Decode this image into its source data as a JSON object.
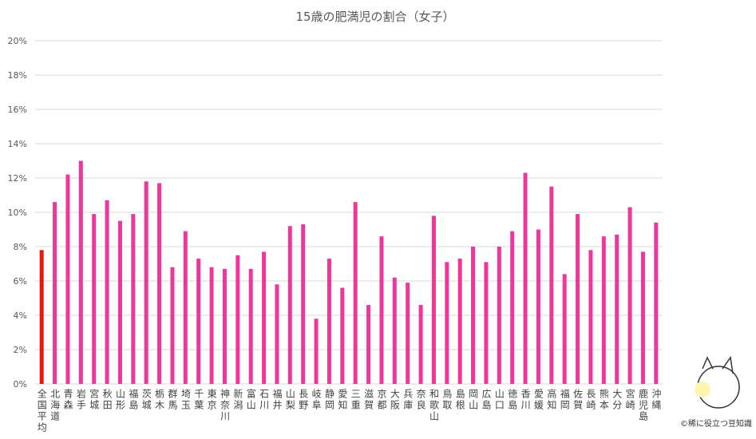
{
  "chart_data": {
    "type": "bar",
    "title": "15歳の肥満児の割合（女子）",
    "categories": [
      "全国平均",
      "北海道",
      "青森",
      "岩手",
      "宮城",
      "秋田",
      "山形",
      "福島",
      "茨城",
      "栃木",
      "群馬",
      "埼玉",
      "千葉",
      "東京",
      "神奈川",
      "新潟",
      "富山",
      "石川",
      "福井",
      "山梨",
      "長野",
      "岐阜",
      "静岡",
      "愛知",
      "三重",
      "滋賀",
      "京都",
      "大阪",
      "兵庫",
      "奈良",
      "和歌山",
      "鳥取",
      "島根",
      "岡山",
      "広島",
      "山口",
      "徳島",
      "香川",
      "愛媛",
      "高知",
      "福岡",
      "佐賀",
      "長崎",
      "熊本",
      "大分",
      "宮崎",
      "鹿児島",
      "沖縄"
    ],
    "values": [
      7.8,
      10.6,
      12.2,
      13.0,
      9.9,
      10.7,
      9.5,
      9.9,
      11.8,
      11.7,
      6.8,
      8.9,
      7.3,
      6.8,
      6.7,
      7.5,
      6.7,
      7.7,
      5.8,
      9.2,
      9.3,
      3.8,
      7.3,
      5.6,
      10.6,
      4.6,
      8.6,
      6.2,
      5.9,
      4.6,
      9.8,
      7.1,
      7.3,
      8.0,
      7.1,
      8.0,
      8.9,
      12.3,
      9.0,
      11.5,
      6.4,
      9.9,
      7.8,
      8.6,
      8.7,
      10.3,
      7.7,
      9.4
    ],
    "colors": [
      "#e8160c",
      "#f0359c",
      "#f0359c",
      "#f0359c",
      "#f0359c",
      "#f0359c",
      "#f0359c",
      "#f0359c",
      "#f0359c",
      "#f0359c",
      "#f0359c",
      "#f0359c",
      "#f0359c",
      "#f0359c",
      "#f0359c",
      "#f0359c",
      "#f0359c",
      "#f0359c",
      "#f0359c",
      "#f0359c",
      "#f0359c",
      "#f0359c",
      "#f0359c",
      "#f0359c",
      "#f0359c",
      "#f0359c",
      "#f0359c",
      "#f0359c",
      "#f0359c",
      "#f0359c",
      "#f0359c",
      "#f0359c",
      "#f0359c",
      "#f0359c",
      "#f0359c",
      "#f0359c",
      "#f0359c",
      "#f0359c",
      "#f0359c",
      "#f0359c",
      "#f0359c",
      "#f0359c",
      "#f0359c",
      "#f0359c",
      "#f0359c",
      "#f0359c",
      "#f0359c",
      "#f0359c"
    ],
    "ylim": [
      0,
      20
    ],
    "yticks": [
      {
        "value": 0,
        "label": "0%"
      },
      {
        "value": 2,
        "label": "2%"
      },
      {
        "value": 4,
        "label": "4%"
      },
      {
        "value": 6,
        "label": "6%"
      },
      {
        "value": 8,
        "label": "8%"
      },
      {
        "value": 10,
        "label": "10%"
      },
      {
        "value": 12,
        "label": "12%"
      },
      {
        "value": 14,
        "label": "14%"
      },
      {
        "value": 16,
        "label": "16%"
      },
      {
        "value": 18,
        "label": "18%"
      },
      {
        "value": 20,
        "label": "20%"
      }
    ],
    "grid": true,
    "credit": "©稀に役立つ豆知識"
  }
}
